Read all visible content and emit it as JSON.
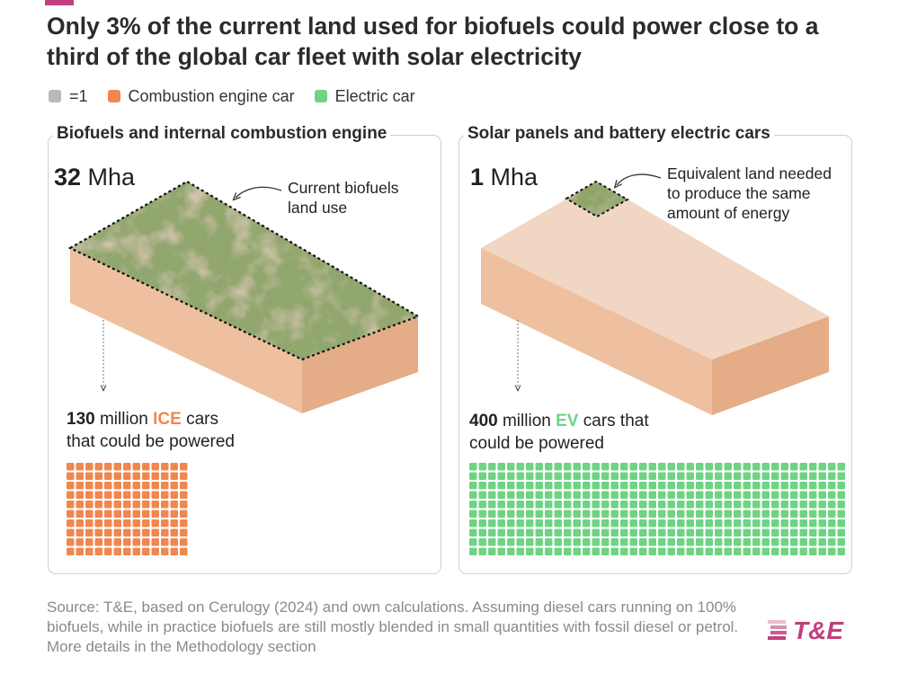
{
  "title": "Only 3% of the current land used for biofuels could power close to a third of the global car fleet with solar electricity",
  "legend": [
    {
      "label": "=1",
      "color": "#b9b9b9"
    },
    {
      "label": "Combustion engine car",
      "color": "#f0874f"
    },
    {
      "label": "Electric car",
      "color": "#6fd383"
    }
  ],
  "panels": {
    "left": {
      "heading": "Biofuels and internal combustion engine",
      "area_value": "32",
      "area_unit": " Mha",
      "annotation": [
        "Current biofuels",
        "land use"
      ],
      "cars_value": "130",
      "cars_pre": " million ",
      "cars_highlight": "ICE",
      "cars_post": " cars",
      "cars_line2": "that could be powered"
    },
    "right": {
      "heading": "Solar panels and battery electric cars",
      "area_value": "1",
      "area_unit": " Mha",
      "annotation": [
        "Equivalent land needed",
        "to produce the same",
        "amount of energy"
      ],
      "cars_value": "400",
      "cars_pre": " million ",
      "cars_highlight": "EV",
      "cars_post": " cars that",
      "cars_line2": "could be powered"
    }
  },
  "chart_data": {
    "type": "waffle",
    "unit": "=1",
    "land_use_mha": {
      "Biofuels and internal combustion engine": 32,
      "Solar panels and battery electric cars": 1
    },
    "series": [
      {
        "name": "Combustion engine car",
        "count": 130,
        "color": "#f0874f"
      },
      {
        "name": "Electric car",
        "count": 400,
        "color": "#6fd383"
      }
    ]
  },
  "colors": {
    "accent": "#c2407d",
    "land_top": "#f0d5c1",
    "land_front": "#eec09f",
    "land_side": "#e6b08b",
    "grass": "#8fa56a"
  },
  "source": "Source: T&E, based on Cerulogy (2024) and own calculations. Assuming diesel cars running on 100% biofuels, while in practice biofuels are still mostly blended in small quantities with fossil diesel or petrol. More details in the Methodology section",
  "logo": "T&E"
}
